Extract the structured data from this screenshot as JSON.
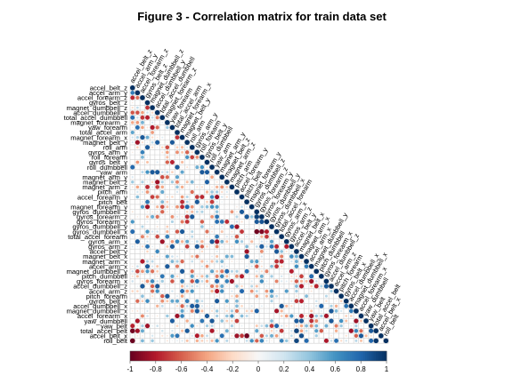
{
  "chart_data": {
    "type": "heatmap",
    "style": "correlogram, lower triangle, circles sized and colored by correlation",
    "title": "Figure 3 - Correlation matrix for train data set",
    "variables": [
      "accel_belt_z",
      "accel_arm_y",
      "accel_forearm_z",
      "gyros_belt_z",
      "magnet_dumbbell_z",
      "accel_dumbbell_y",
      "total_accel_dumbbell",
      "magnet_forearm_z",
      "yaw_forearm",
      "total_accel_arm",
      "magnet_forearm_x",
      "magnet_belt_y",
      "roll_arm",
      "gyros_arm_y",
      "roll_forearm",
      "gyros_belt_y",
      "roll_dumbbell",
      "yaw_arm",
      "magnet_arm_y",
      "magnet_belt_z",
      "magnet_arm_z",
      "pitch_arm",
      "accel_forearm_y",
      "pitch_belt",
      "magnet_forearm_y",
      "gyros_dumbbell_z",
      "gyros_forearm_z",
      "gyros_forearm_y",
      "gyros_dumbbell_y",
      "gyros_dumbbell_x",
      "total_accel_forearm",
      "gyros_arm_x",
      "gyros_arm_z",
      "accel_belt_y",
      "magnet_belt_x",
      "magnet_arm_x",
      "accel_arm_x",
      "magnet_dumbbell_y",
      "pitch_dumbbell",
      "gyros_forearm_x",
      "accel_dumbbell_z",
      "accel_arm_z",
      "pitch_forearm",
      "gyros_belt_x",
      "accel_dumbbell_x",
      "magnet_dumbbell_x",
      "accel_forearm_x",
      "yaw_dumbbell",
      "yaw_belt",
      "total_accel_belt",
      "accel_belt_x",
      "roll_belt"
    ],
    "notable_correlations": [
      {
        "a": "accel_arm_y",
        "b": "accel_belt_z",
        "r": 0.7
      },
      {
        "a": "gyros_dumbbell_z",
        "b": "gyros_forearm_z",
        "r": 0.95
      },
      {
        "a": "gyros_dumbbell_z",
        "b": "gyros_forearm_y",
        "r": 0.85
      },
      {
        "a": "gyros_forearm_z",
        "b": "gyros_forearm_y",
        "r": 0.87
      },
      {
        "a": "gyros_dumbbell_x",
        "b": "gyros_dumbbell_z",
        "r": -0.98
      },
      {
        "a": "gyros_dumbbell_x",
        "b": "gyros_forearm_z",
        "r": -0.93
      },
      {
        "a": "gyros_dumbbell_x",
        "b": "gyros_forearm_y",
        "r": -0.8
      },
      {
        "a": "gyros_arm_z",
        "b": "gyros_arm_x",
        "r": -0.8
      },
      {
        "a": "accel_arm_x",
        "b": "magnet_arm_x",
        "r": 0.7
      },
      {
        "a": "accel_dumbbell_z",
        "b": "magnet_dumbbell_z",
        "r": -0.6
      },
      {
        "a": "accel_dumbbell_x",
        "b": "pitch_dumbbell",
        "r": 0.8
      },
      {
        "a": "gyros_belt_x",
        "b": "accel_belt_y",
        "r": -0.7
      },
      {
        "a": "yaw_belt",
        "b": "roll_belt",
        "r": 0.8
      },
      {
        "a": "total_accel_belt",
        "b": "roll_belt",
        "r": 0.98
      },
      {
        "a": "accel_belt_x",
        "b": "magnet_belt_x",
        "r": 0.89
      },
      {
        "a": "roll_belt",
        "b": "accel_belt_z",
        "r": -0.99
      },
      {
        "a": "total_accel_belt",
        "b": "accel_belt_z",
        "r": -0.97
      },
      {
        "a": "accel_belt_x",
        "b": "pitch_belt",
        "r": -0.97
      },
      {
        "a": "yaw_belt",
        "b": "accel_belt_z",
        "r": -0.78
      },
      {
        "a": "roll_belt",
        "b": "accel_belt_y",
        "r": 0.92
      },
      {
        "a": "total_accel_belt",
        "b": "accel_belt_y",
        "r": 0.93
      },
      {
        "a": "gyros_forearm_x",
        "b": "gyros_dumbbell_x",
        "r": -0.5
      },
      {
        "a": "magnet_dumbbell_x",
        "b": "accel_dumbbell_x",
        "r": 0.7
      },
      {
        "a": "accel_forearm_x",
        "b": "magnet_forearm_x",
        "r": 0.67
      },
      {
        "a": "yaw_dumbbell",
        "b": "accel_dumbbell_z",
        "r": 0.85
      },
      {
        "a": "pitch_forearm",
        "b": "magnet_forearm_x",
        "r": -0.4
      }
    ],
    "color_scale": {
      "range": [
        -1,
        1
      ],
      "ticks": [
        "-1",
        "-0.8",
        "-0.6",
        "-0.4",
        "-0.2",
        "0",
        "0.2",
        "0.4",
        "0.6",
        "0.8",
        "1"
      ],
      "negative_color": "#67001f",
      "neutral_color": "#f7f7f7",
      "positive_color": "#053061"
    },
    "grid": true,
    "legend_position": "bottom"
  }
}
